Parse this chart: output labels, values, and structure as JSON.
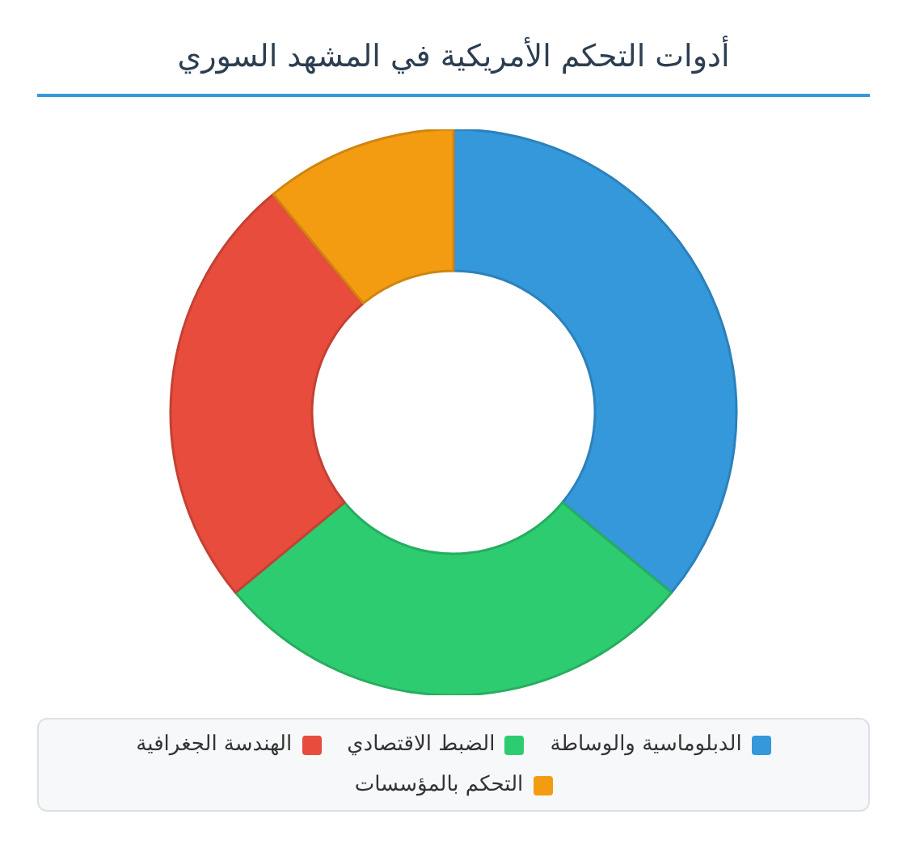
{
  "chart_data": {
    "type": "donut",
    "title": "أدوات التحكم الأمريكية في المشهد السوري",
    "categories": [
      "الدبلوماسية والوساطة",
      "الضبط الاقتصادي",
      "الهندسة الجغرافية",
      "التحكم بالمؤسسات"
    ],
    "values": [
      36,
      28,
      25,
      11
    ],
    "colors": [
      "#3498db",
      "#2ecc71",
      "#e74c3c",
      "#f39c12"
    ],
    "legend": "bottom"
  }
}
